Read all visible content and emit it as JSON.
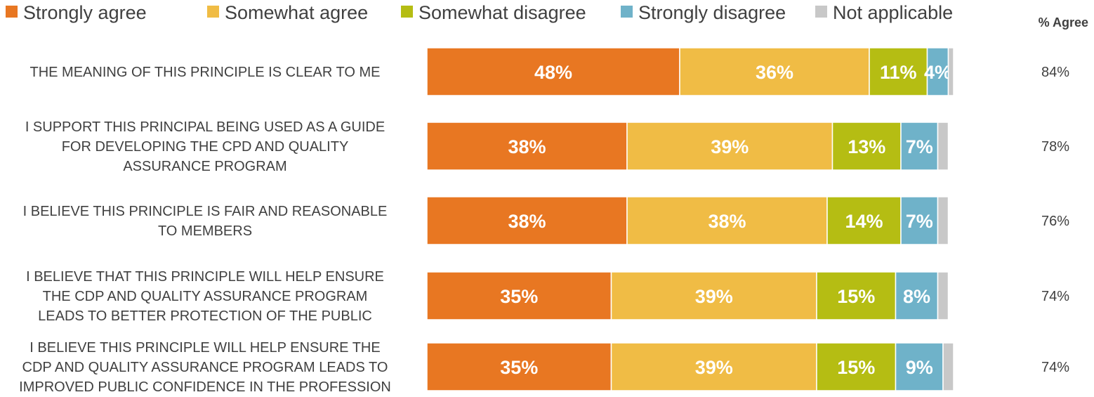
{
  "chart_data": {
    "type": "bar",
    "orientation": "horizontal",
    "stacked": true,
    "title": "",
    "xlabel": "",
    "ylabel": "",
    "xlim": [
      0,
      100
    ],
    "legend_position": "top",
    "agree_header": "% Agree",
    "categories": [
      [
        "THE MEANING OF THIS PRINCIPLE IS CLEAR TO ME"
      ],
      [
        "I SUPPORT THIS PRINCIPAL BEING USED AS A GUIDE",
        "FOR DEVELOPING THE CPD AND QUALITY",
        "ASSURANCE PROGRAM"
      ],
      [
        "I BELIEVE THIS PRINCIPLE IS FAIR AND REASONABLE",
        "TO MEMBERS"
      ],
      [
        "I BELIEVE THAT THIS PRINCIPLE WILL HELP ENSURE",
        "THE CDP AND QUALITY ASSURANCE PROGRAM",
        "LEADS TO BETTER PROTECTION OF THE PUBLIC"
      ],
      [
        "I BELIEVE THIS PRINCIPLE WILL HELP ENSURE THE",
        "CDP AND QUALITY ASSURANCE PROGRAM LEADS TO",
        "IMPROVED PUBLIC CONFIDENCE IN THE PROFESSION"
      ]
    ],
    "series": [
      {
        "name": "Strongly agree",
        "color": "#E87722",
        "values": [
          48,
          38,
          38,
          35,
          35
        ],
        "labels": [
          "48%",
          "38%",
          "38%",
          "35%",
          "35%"
        ]
      },
      {
        "name": "Somewhat agree",
        "color": "#F0BC45",
        "values": [
          36,
          39,
          38,
          39,
          39
        ],
        "labels": [
          "36%",
          "39%",
          "38%",
          "39%",
          "39%"
        ]
      },
      {
        "name": "Somewhat disagree",
        "color": "#B5BD13",
        "values": [
          11,
          13,
          14,
          15,
          15
        ],
        "labels": [
          "11%",
          "13%",
          "14%",
          "15%",
          "15%"
        ]
      },
      {
        "name": "Strongly disagree",
        "color": "#6FB2C9",
        "values": [
          4,
          7,
          7,
          8,
          9
        ],
        "labels": [
          "4%",
          "7%",
          "7%",
          "8%",
          "9%"
        ]
      },
      {
        "name": "Not applicable",
        "color": "#C8C8C8",
        "values": [
          1,
          2,
          2,
          2,
          2
        ],
        "labels": [
          "",
          "",
          "",
          "",
          ""
        ]
      }
    ],
    "agree_totals": [
      "84%",
      "78%",
      "76%",
      "74%",
      "74%"
    ]
  }
}
